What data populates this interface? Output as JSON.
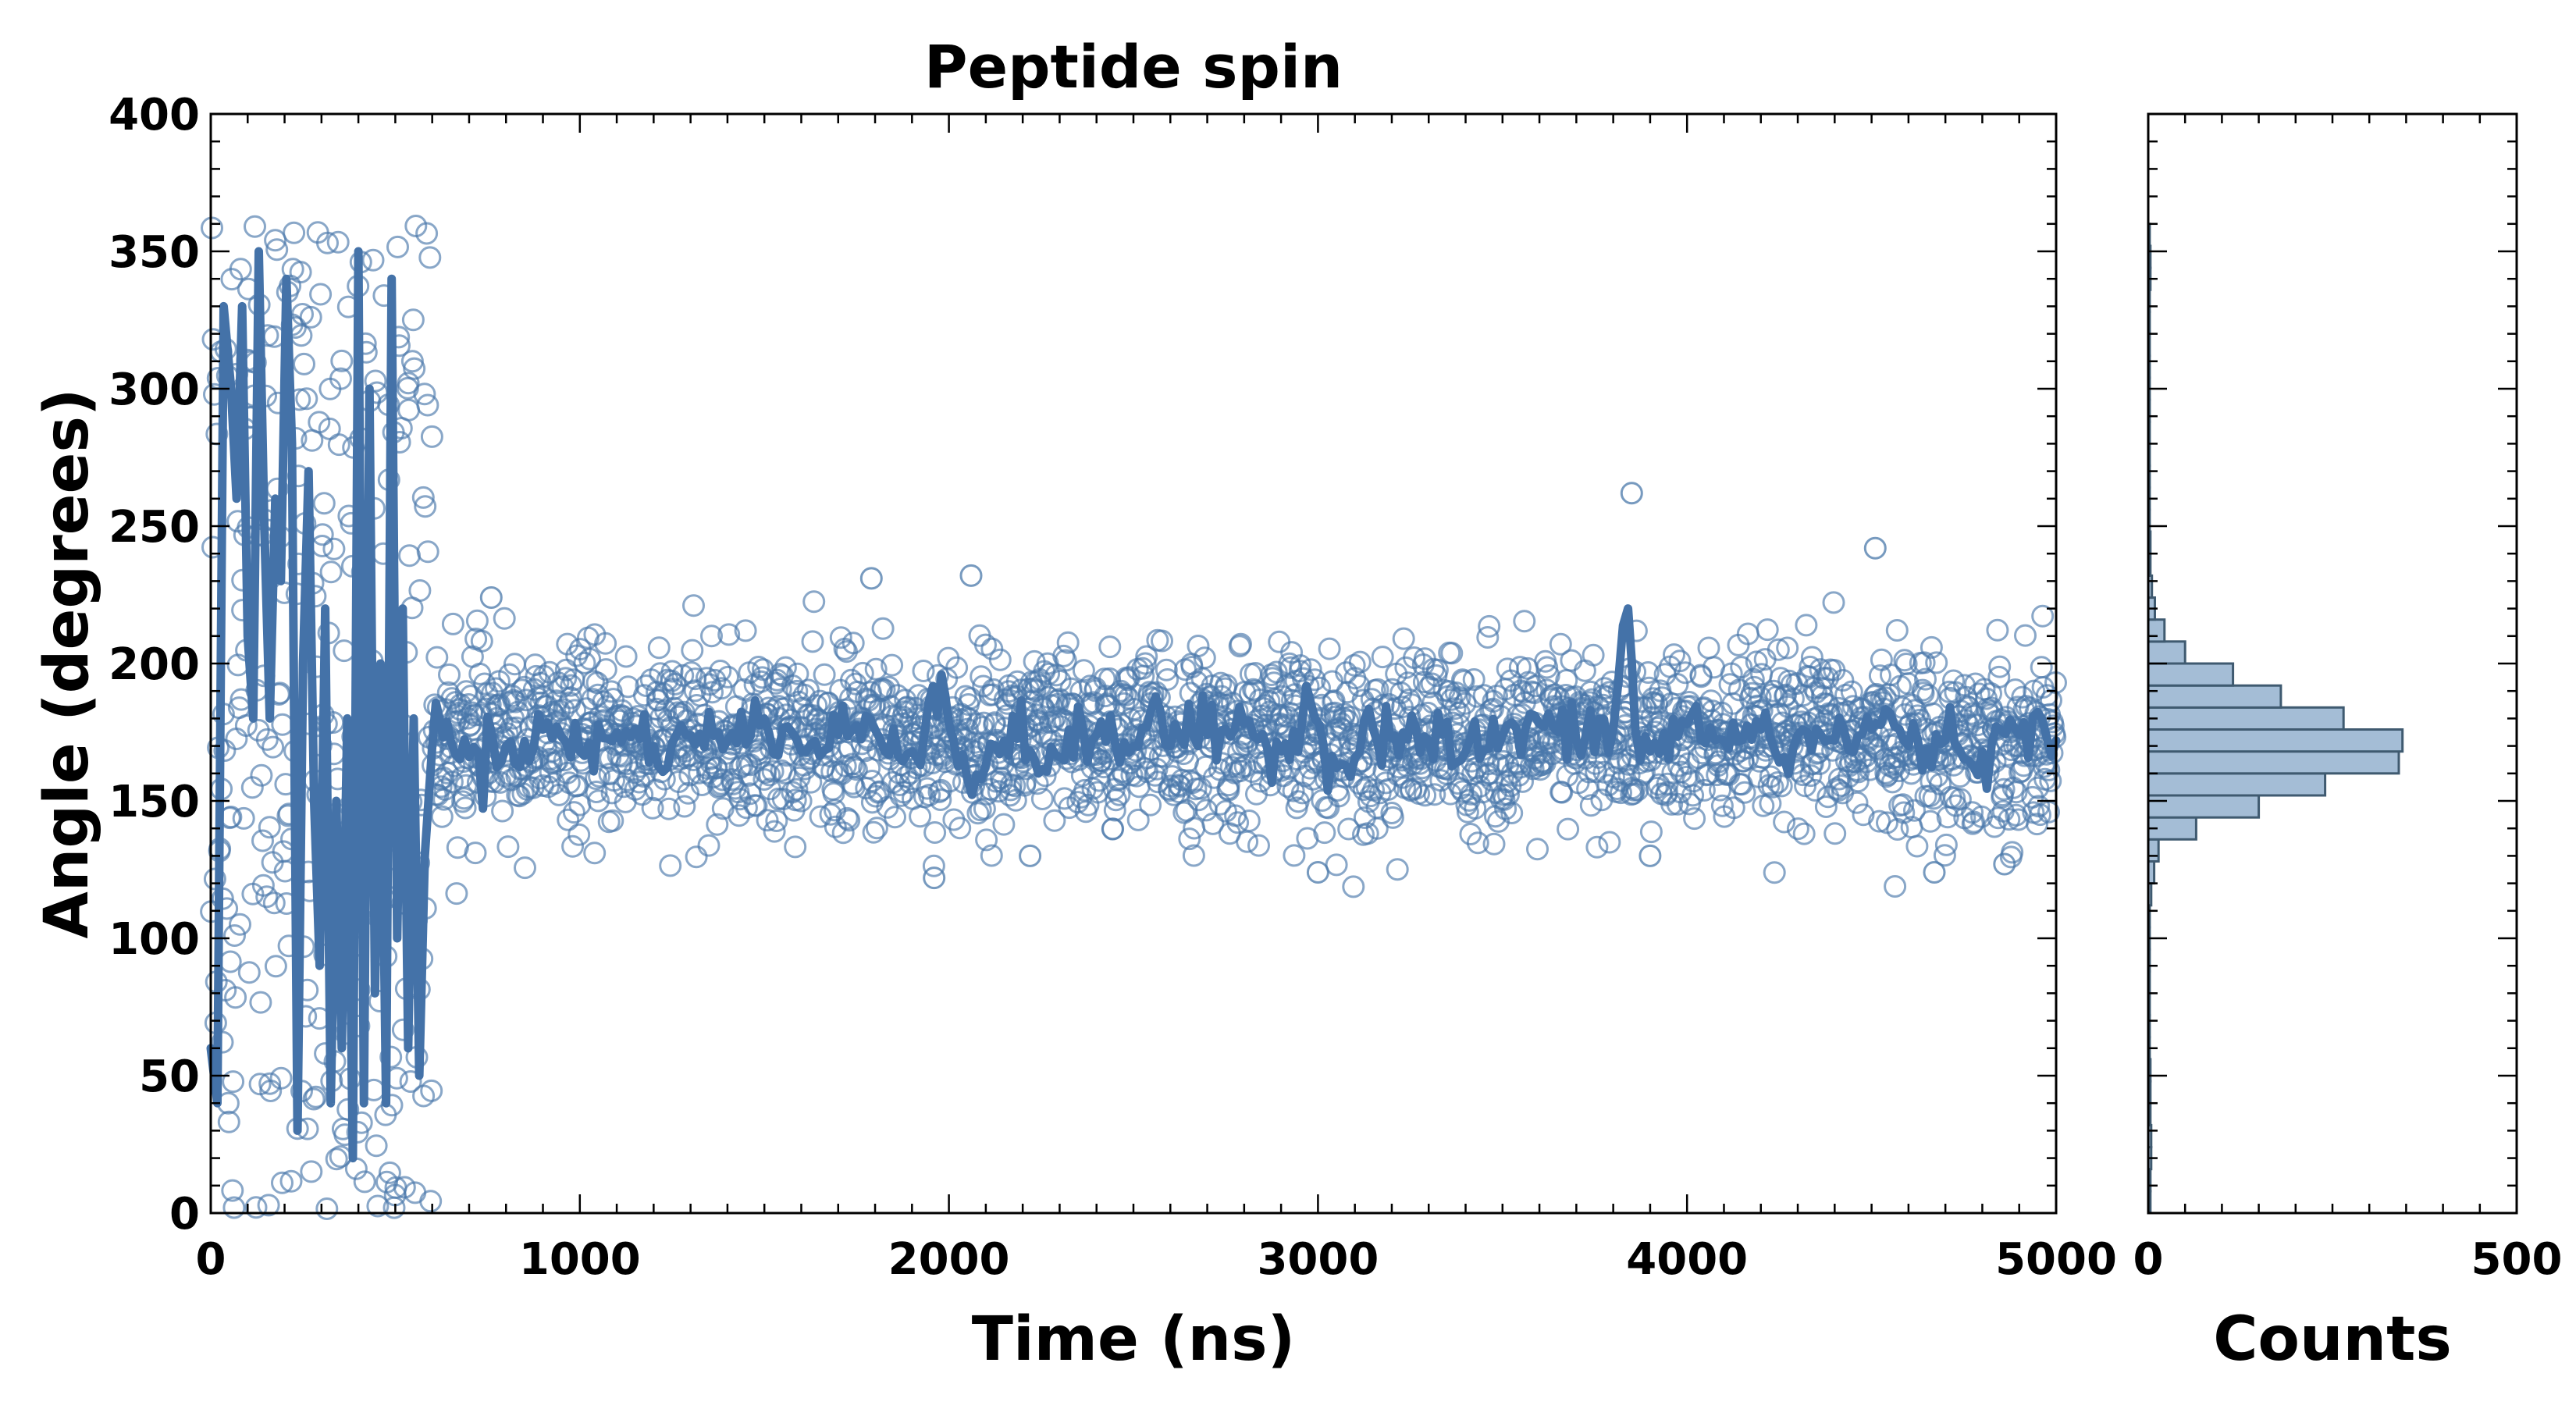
{
  "chart_data": [
    {
      "type": "scatter",
      "title": "Peptide spin",
      "xlabel": "Time (ns)",
      "ylabel": "Angle (degrees)",
      "xlim": [
        0,
        5000
      ],
      "ylim": [
        0,
        400
      ],
      "xticks": [
        "0",
        "1000",
        "2000",
        "3000",
        "4000",
        "5000"
      ],
      "yticks": [
        "0",
        "50",
        "100",
        "150",
        "200",
        "250",
        "300",
        "350",
        "400"
      ],
      "grid": false,
      "colors": {
        "marker": "#4a78aa",
        "line": "#4472a8"
      },
      "series": [
        {
          "kind": "scatter-open-circles",
          "segments": [
            {
              "x_range": [
                0,
                600
              ],
              "y_mean": 175,
              "y_spread": 175,
              "regime": "uniform"
            },
            {
              "x_range": [
                600,
                5000
              ],
              "y_mean": 172,
              "y_spread": 16,
              "regime": "gaussian"
            }
          ],
          "outliers": [
            {
              "x": 3850,
              "y": 262
            },
            {
              "x": 4510,
              "y": 242
            },
            {
              "x": 2060,
              "y": 232
            },
            {
              "x": 1790,
              "y": 231
            },
            {
              "x": 760,
              "y": 224
            },
            {
              "x": 1960,
              "y": 122
            },
            {
              "x": 3000,
              "y": 124
            },
            {
              "x": 4670,
              "y": 124
            },
            {
              "x": 4860,
              "y": 127
            },
            {
              "x": 2220,
              "y": 130
            },
            {
              "x": 3900,
              "y": 130
            }
          ]
        },
        {
          "kind": "line-running-average",
          "points": [
            [
              0,
              60
            ],
            [
              18,
              40
            ],
            [
              35,
              330
            ],
            [
              55,
              300
            ],
            [
              70,
              260
            ],
            [
              85,
              330
            ],
            [
              100,
              210
            ],
            [
              115,
              180
            ],
            [
              130,
              350
            ],
            [
              145,
              250
            ],
            [
              160,
              180
            ],
            [
              175,
              260
            ],
            [
              190,
              230
            ],
            [
              205,
              340
            ],
            [
              220,
              280
            ],
            [
              235,
              30
            ],
            [
              250,
              200
            ],
            [
              265,
              270
            ],
            [
              280,
              150
            ],
            [
              295,
              90
            ],
            [
              310,
              220
            ],
            [
              325,
              40
            ],
            [
              340,
              150
            ],
            [
              355,
              60
            ],
            [
              370,
              180
            ],
            [
              385,
              20
            ],
            [
              400,
              350
            ],
            [
              415,
              40
            ],
            [
              430,
              300
            ],
            [
              445,
              80
            ],
            [
              460,
              200
            ],
            [
              475,
              40
            ],
            [
              490,
              340
            ],
            [
              505,
              100
            ],
            [
              520,
              220
            ],
            [
              535,
              60
            ],
            [
              550,
              180
            ],
            [
              565,
              50
            ],
            [
              580,
              130
            ],
            [
              600,
              170
            ],
            [
              620,
              180
            ],
            [
              650,
              172
            ],
            [
              700,
              166
            ],
            [
              800,
              170
            ],
            [
              900,
              176
            ],
            [
              1000,
              168
            ],
            [
              1100,
              175
            ],
            [
              1200,
              170
            ],
            [
              1300,
              174
            ],
            [
              1400,
              172
            ],
            [
              1500,
              180
            ],
            [
              1600,
              168
            ],
            [
              1700,
              174
            ],
            [
              1800,
              176
            ],
            [
              1900,
              168
            ],
            [
              1980,
              196
            ],
            [
              2000,
              178
            ],
            [
              2050,
              158
            ],
            [
              2150,
              172
            ],
            [
              2300,
              166
            ],
            [
              2400,
              174
            ],
            [
              2500,
              170
            ],
            [
              2560,
              188
            ],
            [
              2600,
              170
            ],
            [
              2700,
              174
            ],
            [
              2800,
              178
            ],
            [
              2900,
              168
            ],
            [
              2980,
              186
            ],
            [
              3050,
              162
            ],
            [
              3150,
              176
            ],
            [
              3300,
              172
            ],
            [
              3400,
              168
            ],
            [
              3500,
              174
            ],
            [
              3600,
              178
            ],
            [
              3700,
              172
            ],
            [
              3800,
              176
            ],
            [
              3840,
              220
            ],
            [
              3860,
              176
            ],
            [
              3900,
              168
            ],
            [
              4000,
              178
            ],
            [
              4100,
              172
            ],
            [
              4200,
              176
            ],
            [
              4250,
              164
            ],
            [
              4300,
              174
            ],
            [
              4400,
              172
            ],
            [
              4500,
              176
            ],
            [
              4550,
              182
            ],
            [
              4600,
              170
            ],
            [
              4700,
              172
            ],
            [
              4800,
              168
            ],
            [
              4900,
              174
            ],
            [
              5000,
              172
            ]
          ]
        }
      ]
    },
    {
      "type": "bar",
      "orientation": "horizontal",
      "xlabel": "Counts",
      "xlim": [
        0,
        500
      ],
      "xticks": [
        "0",
        "500"
      ],
      "ylim": [
        0,
        400
      ],
      "colors": {
        "fill": "#a4bdd6",
        "edge": "#3f5a70"
      },
      "bin_width": 8,
      "bins": [
        {
          "y_start": 0,
          "count": 3
        },
        {
          "y_start": 8,
          "count": 3
        },
        {
          "y_start": 16,
          "count": 4
        },
        {
          "y_start": 24,
          "count": 4
        },
        {
          "y_start": 32,
          "count": 3
        },
        {
          "y_start": 40,
          "count": 3
        },
        {
          "y_start": 48,
          "count": 3
        },
        {
          "y_start": 56,
          "count": 2
        },
        {
          "y_start": 64,
          "count": 2
        },
        {
          "y_start": 72,
          "count": 2
        },
        {
          "y_start": 80,
          "count": 2
        },
        {
          "y_start": 88,
          "count": 2
        },
        {
          "y_start": 96,
          "count": 2
        },
        {
          "y_start": 104,
          "count": 2
        },
        {
          "y_start": 112,
          "count": 4
        },
        {
          "y_start": 120,
          "count": 8
        },
        {
          "y_start": 128,
          "count": 14
        },
        {
          "y_start": 136,
          "count": 65
        },
        {
          "y_start": 144,
          "count": 150
        },
        {
          "y_start": 152,
          "count": 240
        },
        {
          "y_start": 160,
          "count": 340
        },
        {
          "y_start": 168,
          "count": 345
        },
        {
          "y_start": 176,
          "count": 265
        },
        {
          "y_start": 184,
          "count": 180
        },
        {
          "y_start": 192,
          "count": 115
        },
        {
          "y_start": 200,
          "count": 50
        },
        {
          "y_start": 208,
          "count": 22
        },
        {
          "y_start": 216,
          "count": 9
        },
        {
          "y_start": 224,
          "count": 5
        },
        {
          "y_start": 232,
          "count": 3
        },
        {
          "y_start": 240,
          "count": 3
        },
        {
          "y_start": 248,
          "count": 2
        },
        {
          "y_start": 256,
          "count": 2
        },
        {
          "y_start": 264,
          "count": 2
        },
        {
          "y_start": 272,
          "count": 2
        },
        {
          "y_start": 280,
          "count": 2
        },
        {
          "y_start": 288,
          "count": 2
        },
        {
          "y_start": 296,
          "count": 2
        },
        {
          "y_start": 304,
          "count": 2
        },
        {
          "y_start": 312,
          "count": 2
        },
        {
          "y_start": 320,
          "count": 2
        },
        {
          "y_start": 328,
          "count": 2
        },
        {
          "y_start": 336,
          "count": 3
        },
        {
          "y_start": 344,
          "count": 3
        },
        {
          "y_start": 352,
          "count": 2
        }
      ]
    }
  ]
}
